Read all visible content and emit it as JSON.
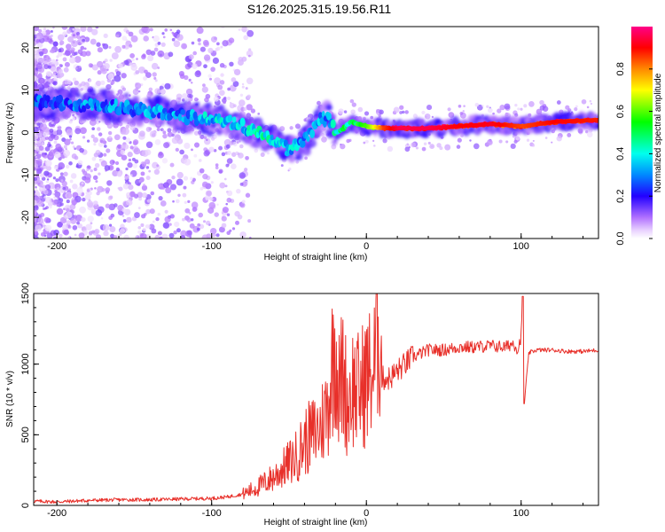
{
  "title": "S126.2025.315.19.56.R11",
  "chart_data": [
    {
      "type": "heatmap",
      "xlabel": "Height of straight line (km)",
      "ylabel": "Frequency (Hz)",
      "xlim": [
        -215,
        150
      ],
      "ylim": [
        -25,
        25
      ],
      "x_ticks": [
        -200,
        -100,
        0,
        100
      ],
      "y_ticks": [
        -20,
        -10,
        0,
        10,
        20
      ],
      "colorbar": {
        "label": "Normalized spectral amplitude",
        "range": [
          0,
          1
        ],
        "ticks": [
          "0.0",
          "0.2",
          "0.4",
          "0.6",
          "0.8"
        ],
        "tick_values": [
          0.0,
          0.2,
          0.4,
          0.6,
          0.8
        ]
      },
      "ridge": {
        "x": [
          -200,
          -180,
          -160,
          -140,
          -120,
          -100,
          -90,
          -80,
          -70,
          -60,
          -50,
          -40,
          -30,
          -25,
          -20,
          -15,
          -10,
          -5,
          0,
          10,
          20,
          40,
          60,
          80,
          100,
          120,
          150
        ],
        "freq": [
          7,
          6.5,
          6,
          5,
          4,
          3,
          2.5,
          1.5,
          0,
          -2,
          -4,
          -2,
          3,
          3.5,
          0,
          1,
          2.5,
          2,
          1.5,
          1,
          1,
          1,
          1.5,
          2,
          1.5,
          2.5,
          3
        ],
        "amplitude": [
          0.25,
          0.3,
          0.28,
          0.3,
          0.3,
          0.35,
          0.35,
          0.35,
          0.4,
          0.4,
          0.35,
          0.3,
          0.35,
          0.3,
          0.4,
          0.45,
          0.5,
          0.55,
          0.6,
          0.85,
          0.95,
          0.95,
          0.9,
          0.92,
          0.85,
          0.9,
          0.88
        ]
      }
    },
    {
      "type": "line",
      "xlabel": "Height of straight line (km)",
      "ylabel": "SNR (10 * v/v)",
      "xlim": [
        -215,
        150
      ],
      "ylim": [
        0,
        1500
      ],
      "x_ticks": [
        -200,
        -100,
        0,
        100
      ],
      "y_ticks": [
        0,
        500,
        1000,
        1500
      ],
      "series": [
        {
          "color": "#e8302a",
          "x": [
            -215,
            -200,
            -180,
            -160,
            -140,
            -120,
            -100,
            -90,
            -80,
            -70,
            -60,
            -55,
            -50,
            -45,
            -40,
            -35,
            -30,
            -25,
            -22,
            -20,
            -18,
            -15,
            -12,
            -10,
            -5,
            0,
            5,
            8,
            10,
            15,
            20,
            25,
            30,
            40,
            50,
            60,
            70,
            80,
            90,
            95,
            98,
            100,
            101,
            102,
            105,
            110,
            120,
            130,
            140,
            150
          ],
          "values": [
            30,
            25,
            35,
            40,
            40,
            45,
            50,
            60,
            80,
            130,
            200,
            250,
            300,
            350,
            450,
            500,
            550,
            700,
            1000,
            1200,
            800,
            950,
            700,
            850,
            800,
            900,
            950,
            1350,
            900,
            900,
            950,
            1000,
            1050,
            1100,
            1100,
            1120,
            1120,
            1130,
            1120,
            1150,
            1100,
            1200,
            1480,
            720,
            1080,
            1100,
            1100,
            1090,
            1090,
            1100
          ]
        }
      ]
    }
  ]
}
